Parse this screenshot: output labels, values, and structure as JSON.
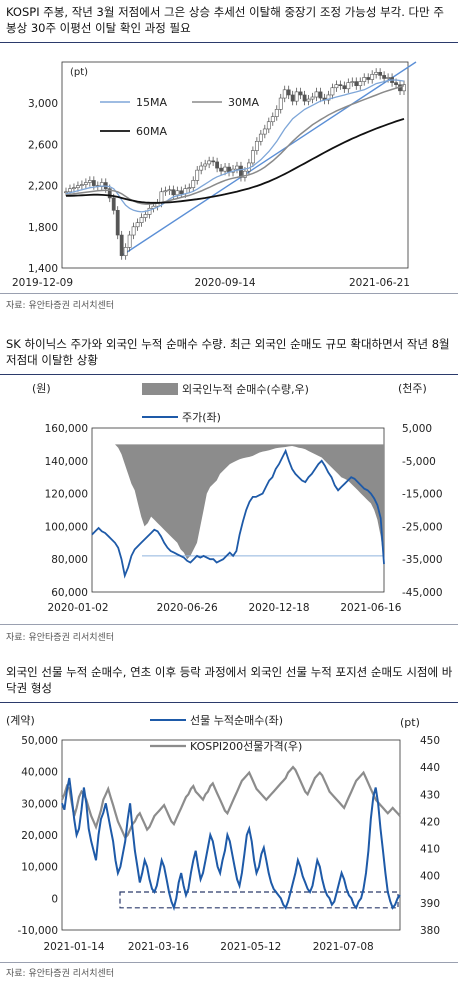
{
  "panels": [
    {
      "title": "KOSPI 주봉, 작년 3월 저점에서 그은 상승 추세선 이탈해 중장기 조정 가능성 부각. 다만 주봉상 30주 이평선 이탈 확인 과정 필요",
      "source": "자료: 유안타증권 리서치센터"
    },
    {
      "title": "SK 하이닉스 주가와 외국인 누적 순매수 수량. 최근 외국인 순매도 규모 확대하면서 작년 8월 저점대 이탈한 상황",
      "source": "자료: 유안타증권 리서치센터"
    },
    {
      "title": "외국인 선물 누적 순매수, 연초 이후 등락 과정에서 외국인 선물 누적 포지션 순매도 시점에 바닥권 형성",
      "source": "자료: 유안타증권 리서치센터"
    }
  ],
  "chart_data": [
    {
      "type": "line",
      "subtype": "candlestick",
      "ylabel": "(pt)",
      "ylim": [
        1400,
        3400
      ],
      "yticks": [
        "3,000",
        "2,600",
        "2,200",
        "1,800",
        "1,400"
      ],
      "ytick_values": [
        3000,
        2600,
        2200,
        1800,
        1400
      ],
      "xticks": [
        "2019-12-09",
        "2020-09-14",
        "2021-06-21"
      ],
      "n_weeks": 86,
      "xtick_index": [
        0,
        40,
        80
      ],
      "legend": [
        {
          "name": "15MA",
          "color": "#7ea6d8"
        },
        {
          "name": "30MA",
          "color": "#8a8a8a"
        },
        {
          "name": "60MA",
          "color": "#111111"
        }
      ],
      "candle_color": "#555555",
      "trendline_color": "#5b8fd6",
      "series": [
        {
          "name": "KOSPI",
          "values": [
            2140,
            2170,
            2180,
            2200,
            2210,
            2230,
            2250,
            2200,
            2190,
            2230,
            2170,
            2080,
            1960,
            1720,
            1520,
            1600,
            1720,
            1800,
            1840,
            1890,
            1920,
            1980,
            2000,
            2030,
            2140,
            2150,
            2160,
            2110,
            2150,
            2120,
            2170,
            2180,
            2250,
            2350,
            2390,
            2410,
            2440,
            2430,
            2370,
            2340,
            2380,
            2330,
            2360,
            2390,
            2280,
            2340,
            2420,
            2540,
            2630,
            2700,
            2750,
            2820,
            2870,
            2940,
            3050,
            3130,
            3080,
            3020,
            3110,
            3080,
            3020,
            3040,
            3060,
            3110,
            3050,
            3030,
            3080,
            3150,
            3180,
            3170,
            3140,
            3200,
            3210,
            3170,
            3210,
            3250,
            3230,
            3280,
            3300,
            3270,
            3240,
            3250,
            3200,
            3180,
            3120,
            3180
          ]
        },
        {
          "name": "15MA",
          "values": [
            2120,
            2130,
            2140,
            2150,
            2160,
            2170,
            2180,
            2185,
            2190,
            2195,
            2195,
            2190,
            2170,
            2120,
            2060,
            2010,
            1980,
            1960,
            1950,
            1945,
            1950,
            1960,
            1975,
            1990,
            2010,
            2040,
            2070,
            2090,
            2100,
            2110,
            2120,
            2130,
            2145,
            2165,
            2190,
            2215,
            2240,
            2265,
            2285,
            2300,
            2315,
            2330,
            2340,
            2350,
            2355,
            2360,
            2370,
            2390,
            2420,
            2450,
            2490,
            2530,
            2580,
            2630,
            2690,
            2750,
            2800,
            2850,
            2880,
            2910,
            2940,
            2960,
            2980,
            3000,
            3020,
            3030,
            3040,
            3050,
            3060,
            3070,
            3080,
            3090,
            3100,
            3110,
            3120,
            3130,
            3150,
            3170,
            3190,
            3200,
            3210,
            3220,
            3225,
            3225,
            3220,
            3215
          ]
        },
        {
          "name": "30MA",
          "values": [
            2110,
            2115,
            2120,
            2125,
            2130,
            2135,
            2140,
            2145,
            2150,
            2152,
            2154,
            2155,
            2150,
            2140,
            2120,
            2095,
            2070,
            2050,
            2035,
            2025,
            2020,
            2020,
            2025,
            2030,
            2035,
            2045,
            2055,
            2065,
            2075,
            2085,
            2095,
            2105,
            2118,
            2132,
            2148,
            2165,
            2182,
            2200,
            2218,
            2235,
            2250,
            2262,
            2272,
            2280,
            2288,
            2295,
            2305,
            2318,
            2335,
            2355,
            2380,
            2410,
            2440,
            2475,
            2510,
            2550,
            2590,
            2630,
            2665,
            2700,
            2730,
            2760,
            2790,
            2815,
            2840,
            2862,
            2885,
            2905,
            2925,
            2942,
            2958,
            2975,
            2990,
            3005,
            3020,
            3035,
            3050,
            3065,
            3080,
            3095,
            3110,
            3122,
            3134,
            3146,
            3158,
            3170
          ]
        },
        {
          "name": "60MA",
          "values": [
            2100,
            2100,
            2102,
            2104,
            2106,
            2108,
            2110,
            2112,
            2112,
            2110,
            2108,
            2104,
            2098,
            2090,
            2080,
            2070,
            2060,
            2052,
            2045,
            2040,
            2036,
            2034,
            2033,
            2033,
            2034,
            2036,
            2038,
            2041,
            2045,
            2049,
            2053,
            2058,
            2063,
            2068,
            2074,
            2080,
            2086,
            2093,
            2100,
            2108,
            2116,
            2124,
            2133,
            2142,
            2152,
            2162,
            2172,
            2184,
            2196,
            2210,
            2225,
            2240,
            2257,
            2275,
            2293,
            2312,
            2332,
            2353,
            2374,
            2395,
            2416,
            2437,
            2458,
            2479,
            2500,
            2521,
            2542,
            2562,
            2582,
            2601,
            2620,
            2638,
            2656,
            2673,
            2690,
            2706,
            2722,
            2738,
            2753,
            2768,
            2782,
            2796,
            2810,
            2823,
            2836,
            2848
          ]
        }
      ],
      "trendline": {
        "start": [
          14,
          1520
        ],
        "end": [
          85,
          3400
        ]
      }
    },
    {
      "type": "area",
      "left_ylabel": "(원)",
      "right_ylabel": "(천주)",
      "ylim": [
        60000,
        160000
      ],
      "y2lim": [
        -45000,
        5000
      ],
      "yticks": [
        "160,000",
        "140,000",
        "120,000",
        "100,000",
        "80,000",
        "60,000"
      ],
      "ytick_values": [
        160000,
        140000,
        120000,
        100000,
        80000,
        60000
      ],
      "y2ticks": [
        "5,000",
        "-5,000",
        "-15,000",
        "-25,000",
        "-35,000",
        "-45,000"
      ],
      "y2tick_values": [
        5000,
        -5000,
        -15000,
        -25000,
        -35000,
        -45000
      ],
      "xticks": [
        "2020-01-02",
        "2020-06-26",
        "2020-12-18",
        "2021-06-16"
      ],
      "n_points": 90,
      "xtick_index": [
        0,
        29,
        57,
        85
      ],
      "legend": [
        {
          "name": "외국인누적 순매수(수량,우)",
          "color": "#8c8c8c"
        },
        {
          "name": "주가(좌)",
          "color": "#1e5aa8"
        }
      ],
      "reference_line": {
        "value": 82000,
        "color": "#8fb3dd"
      },
      "series": [
        {
          "name": "외국인누적 순매수(수량,우)",
          "axis": "right",
          "values": [
            0,
            0,
            0,
            0,
            0,
            0,
            0,
            0,
            -1000,
            -3000,
            -6000,
            -9000,
            -12000,
            -14000,
            -18000,
            -22000,
            -25000,
            -24000,
            -22000,
            -23000,
            -24000,
            -25000,
            -26000,
            -27000,
            -28000,
            -29000,
            -30000,
            -32000,
            -33000,
            -35000,
            -34000,
            -32000,
            -30000,
            -25000,
            -20000,
            -15000,
            -13000,
            -12000,
            -11000,
            -9000,
            -8000,
            -7000,
            -6000,
            -5500,
            -5000,
            -4500,
            -4200,
            -4000,
            -3800,
            -3500,
            -3000,
            -2500,
            -2200,
            -2000,
            -1800,
            -1500,
            -1200,
            -1000,
            -900,
            -800,
            -600,
            -500,
            -700,
            -1000,
            -1200,
            -1500,
            -2000,
            -2500,
            -3000,
            -3500,
            -4000,
            -5000,
            -6000,
            -7000,
            -8000,
            -9000,
            -10000,
            -10500,
            -11000,
            -12000,
            -13000,
            -14000,
            -15000,
            -16000,
            -17000,
            -18000,
            -20000,
            -23000,
            -28000,
            -36000
          ]
        },
        {
          "name": "주가(좌)",
          "axis": "left",
          "values": [
            95000,
            97000,
            99000,
            97000,
            96000,
            94000,
            92000,
            90000,
            87000,
            80000,
            70000,
            75000,
            82000,
            86000,
            88000,
            90000,
            92000,
            94000,
            96000,
            98000,
            97000,
            94000,
            90000,
            87000,
            85000,
            84000,
            83000,
            82000,
            81000,
            79000,
            78000,
            80000,
            82000,
            81000,
            82000,
            81000,
            80000,
            80000,
            78000,
            79000,
            80000,
            82000,
            84000,
            82000,
            85000,
            95000,
            103000,
            110000,
            115000,
            118000,
            118000,
            119000,
            120000,
            124000,
            128000,
            130000,
            135000,
            138000,
            142000,
            146000,
            140000,
            135000,
            132000,
            130000,
            128000,
            127000,
            130000,
            132000,
            135000,
            138000,
            140000,
            137000,
            133000,
            130000,
            125000,
            122000,
            124000,
            126000,
            128000,
            130000,
            129000,
            127000,
            125000,
            123000,
            122000,
            120000,
            117000,
            113000,
            105000,
            77000
          ]
        }
      ]
    },
    {
      "type": "line",
      "left_ylabel": "(계약)",
      "right_ylabel": "(pt)",
      "ylim": [
        -10000,
        50000
      ],
      "y2lim": [
        380,
        450
      ],
      "yticks": [
        "50,000",
        "40,000",
        "30,000",
        "20,000",
        "10,000",
        "0",
        "-10,000"
      ],
      "ytick_values": [
        50000,
        40000,
        30000,
        20000,
        10000,
        0,
        -10000
      ],
      "y2ticks": [
        "450",
        "440",
        "430",
        "420",
        "410",
        "400",
        "390",
        "380"
      ],
      "y2tick_values": [
        450,
        440,
        430,
        420,
        410,
        400,
        390,
        380
      ],
      "xticks": [
        "2021-01-14",
        "2021-03-16",
        "2021-05-12",
        "2021-07-08"
      ],
      "n_points": 140,
      "xtick_index": [
        0,
        38,
        76,
        114
      ],
      "legend": [
        {
          "name": "선물 누적순매수(좌)",
          "color": "#1e5aa8"
        },
        {
          "name": "KOSPI200선물가격(우)",
          "color": "#8c8c8c"
        }
      ],
      "highlight_box": {
        "y_from": -3000,
        "y_to": 2000,
        "color": "#2b3a6b"
      },
      "series": [
        {
          "name": "선물 누적순매수(좌)",
          "axis": "left",
          "values": [
            30000,
            28000,
            34000,
            38000,
            32000,
            25000,
            20000,
            22000,
            28000,
            35000,
            30000,
            22000,
            18000,
            15000,
            12000,
            20000,
            25000,
            27000,
            30000,
            26000,
            22000,
            18000,
            12000,
            8000,
            10000,
            14000,
            18000,
            25000,
            30000,
            22000,
            15000,
            10000,
            5000,
            8000,
            12000,
            10000,
            6000,
            3000,
            2000,
            4000,
            8000,
            12000,
            10000,
            6000,
            2000,
            -1000,
            -3000,
            0,
            5000,
            8000,
            4000,
            1000,
            3000,
            8000,
            12000,
            15000,
            10000,
            6000,
            8000,
            12000,
            16000,
            20000,
            18000,
            14000,
            10000,
            8000,
            12000,
            15000,
            20000,
            18000,
            14000,
            10000,
            6000,
            4000,
            8000,
            14000,
            20000,
            22000,
            18000,
            12000,
            8000,
            10000,
            14000,
            16000,
            12000,
            8000,
            5000,
            3000,
            2000,
            1000,
            0,
            -2000,
            -3000,
            -1000,
            2000,
            5000,
            8000,
            12000,
            10000,
            7000,
            5000,
            3000,
            2000,
            4000,
            8000,
            12000,
            10000,
            6000,
            3000,
            1000,
            0,
            -2000,
            -1000,
            2000,
            5000,
            8000,
            6000,
            3000,
            1000,
            0,
            -2000,
            -3000,
            -1000,
            0,
            3000,
            8000,
            15000,
            25000,
            32000,
            35000,
            30000,
            22000,
            15000,
            8000,
            2000,
            -1000,
            -3000,
            -2000,
            0,
            1000
          ]
        },
        {
          "name": "KOSPI200선물가격(우)",
          "axis": "right",
          "values": [
            428,
            430,
            433,
            432,
            427,
            422,
            425,
            429,
            431,
            430,
            428,
            425,
            422,
            420,
            418,
            421,
            424,
            428,
            430,
            432,
            429,
            426,
            423,
            420,
            418,
            416,
            414,
            415,
            417,
            419,
            420,
            422,
            423,
            421,
            419,
            417,
            418,
            420,
            422,
            423,
            424,
            425,
            426,
            424,
            422,
            420,
            419,
            421,
            423,
            425,
            427,
            429,
            430,
            432,
            433,
            431,
            430,
            429,
            428,
            430,
            431,
            433,
            434,
            432,
            430,
            428,
            426,
            424,
            423,
            425,
            427,
            429,
            431,
            433,
            435,
            436,
            437,
            438,
            436,
            434,
            432,
            431,
            430,
            429,
            428,
            429,
            430,
            431,
            432,
            433,
            434,
            435,
            436,
            438,
            439,
            440,
            439,
            437,
            435,
            433,
            431,
            430,
            432,
            434,
            436,
            437,
            438,
            437,
            435,
            433,
            431,
            430,
            429,
            428,
            427,
            426,
            425,
            427,
            429,
            431,
            433,
            435,
            436,
            437,
            438,
            436,
            434,
            432,
            430,
            428,
            427,
            426,
            425,
            424,
            423,
            424,
            425,
            424,
            423,
            422
          ]
        }
      ]
    }
  ]
}
